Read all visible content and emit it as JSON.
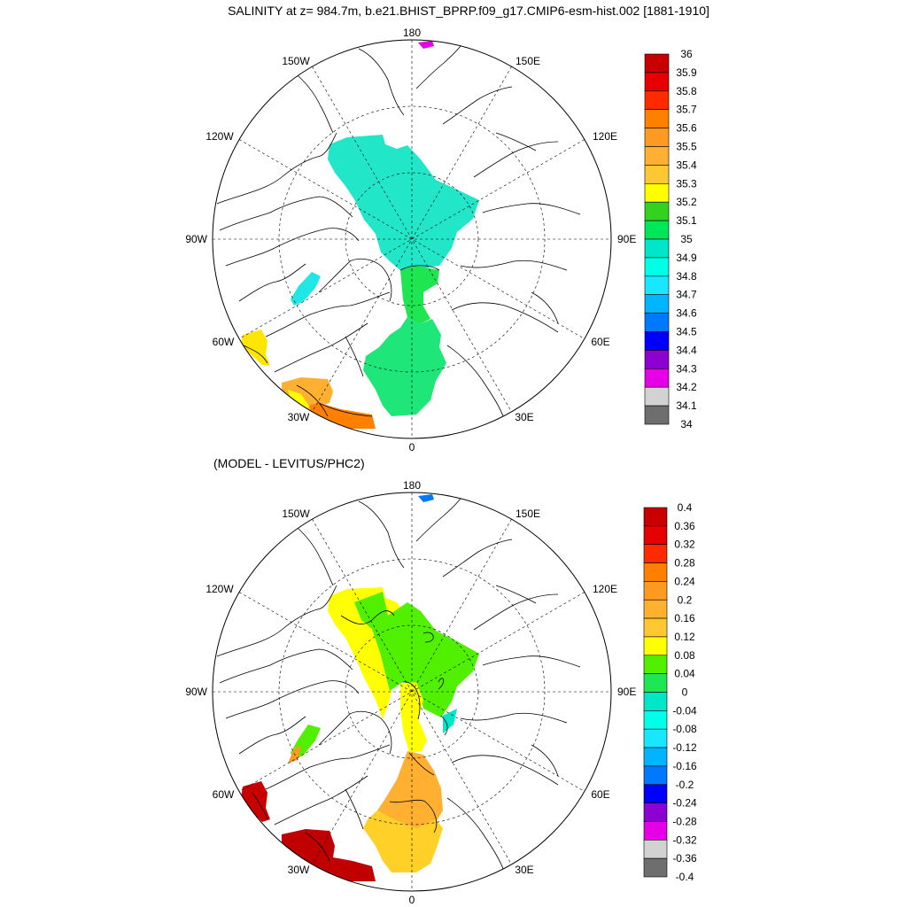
{
  "panels": [
    {
      "title": "SALINITY at z= 984.7m, b.e21.BHIST_BPRP.f09_g17.CMIP6-esm-hist.002 [1881-1910]",
      "variable": "salinity",
      "lon_labels": {
        "top": "180",
        "bottom": "0",
        "left": "90W",
        "right": "90E",
        "upper_left": "150W",
        "upper_right": "150E",
        "mid_upper_left": "120W",
        "mid_upper_right": "120E",
        "mid_lower_left": "60W",
        "mid_lower_right": "60E",
        "lower_left": "30W",
        "lower_right": "30E"
      },
      "colorbar_labels": [
        "36",
        "35.9",
        "35.8",
        "35.7",
        "35.6",
        "35.5",
        "35.4",
        "35.3",
        "35.2",
        "35.1",
        "35",
        "34.9",
        "34.8",
        "34.7",
        "34.6",
        "34.5",
        "34.4",
        "34.3",
        "34.2",
        "34.1",
        "34"
      ],
      "colorbar_colors": [
        "#c80000",
        "#e60000",
        "#ff2a00",
        "#ff8000",
        "#ff9a20",
        "#ffb030",
        "#ffc832",
        "#ffff00",
        "#32d21e",
        "#00e65a",
        "#00e6c8",
        "#00ffe6",
        "#19e6ff",
        "#00b4ff",
        "#0078ff",
        "#0000ff",
        "#8c00d2",
        "#e600e6",
        "#d2d2d2",
        "#6e6e6e"
      ],
      "regions": [
        {
          "name": "arctic-basin",
          "value": "34.9",
          "color": "#21e6c8"
        },
        {
          "name": "baffin",
          "value": "34.8",
          "color": "#21e6e6"
        },
        {
          "name": "fram-strait",
          "value": "35.0",
          "color": "#1ee650"
        },
        {
          "name": "nordic-seas",
          "value": "35.0",
          "color": "#1ee678"
        },
        {
          "name": "labrador-sea",
          "value": "35.3",
          "color": "#ffe600"
        },
        {
          "name": "north-atlantic-a",
          "value": "35.5",
          "color": "#ffb030"
        },
        {
          "name": "north-atlantic-b",
          "value": "35.7",
          "color": "#ff8000"
        },
        {
          "name": "bering-spot",
          "value": "34.3",
          "color": "#e600e6"
        }
      ]
    },
    {
      "title": "(MODEL - LEVITUS/PHC2)",
      "variable": "salinity difference",
      "lon_labels": {
        "top": "180",
        "bottom": "0",
        "left": "90W",
        "right": "90E",
        "upper_left": "150W",
        "upper_right": "150E",
        "mid_upper_left": "120W",
        "mid_upper_right": "120E",
        "mid_lower_left": "60W",
        "mid_lower_right": "60E",
        "lower_left": "30W",
        "lower_right": "30E"
      },
      "colorbar_labels": [
        "0.4",
        "0.36",
        "0.32",
        "0.28",
        "0.24",
        "0.2",
        "0.16",
        "0.12",
        "0.08",
        "0.04",
        "0",
        "-0.04",
        "-0.08",
        "-0.12",
        "-0.16",
        "-0.2",
        "-0.24",
        "-0.28",
        "-0.32",
        "-0.36",
        "-0.4"
      ],
      "colorbar_colors": [
        "#c80000",
        "#e60000",
        "#ff2a00",
        "#ff8000",
        "#ff9a20",
        "#ffb030",
        "#ffc832",
        "#ffff00",
        "#50f000",
        "#1ee650",
        "#00e6c8",
        "#00ffe6",
        "#19e6ff",
        "#00b4ff",
        "#0078ff",
        "#0000ff",
        "#8c00d2",
        "#e600e6",
        "#d2d2d2",
        "#6e6e6e"
      ],
      "regions": [
        {
          "name": "canada-basin",
          "value": "0.12",
          "color": "#ffff00"
        },
        {
          "name": "eurasian-basin",
          "value": "0.06",
          "color": "#50f000"
        },
        {
          "name": "fram-strait",
          "value": "0.12",
          "color": "#ffff00"
        },
        {
          "name": "laptev-edge",
          "value": "-0.04",
          "color": "#00e6c8"
        },
        {
          "name": "baffin",
          "value": "0.06",
          "color": "#50f000"
        },
        {
          "name": "baffin-south",
          "value": "0.24",
          "color": "#ff9a20"
        },
        {
          "name": "nordic-seas",
          "value": "0.16",
          "color": "#ffb030"
        },
        {
          "name": "norwegian-sea",
          "value": "0.14",
          "color": "#ffd028"
        },
        {
          "name": "labrador-sea",
          "value": "0.38",
          "color": "#c80000"
        },
        {
          "name": "north-atlantic",
          "value": "0.38",
          "color": "#c00000"
        },
        {
          "name": "bering-spot",
          "value": "-0.14",
          "color": "#0078ff"
        }
      ]
    }
  ]
}
